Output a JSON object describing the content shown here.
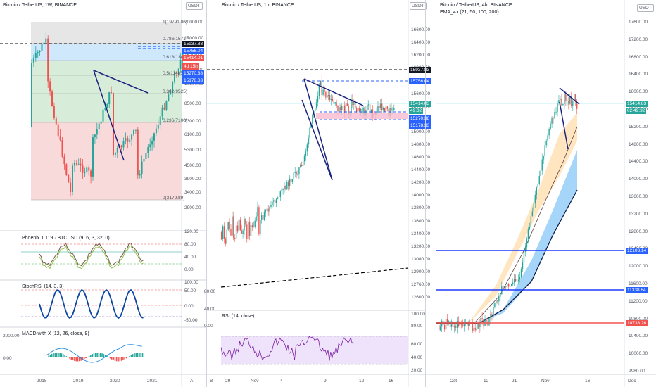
{
  "colors": {
    "bg": "#ffffff",
    "price_up": "#26a69a",
    "price_down": "#ef5350",
    "tag_blue": "#2962ff",
    "tag_black": "#131722",
    "tag_red": "#ef5350",
    "tag_teal": "#26a69a",
    "fib_red": "#f7cbcb",
    "fib_green": "#c8e6c9",
    "fib_blue": "#bbdefb",
    "fib_gray": "#e0e0e0",
    "rsi_fill": "#efe3fb",
    "ema_fill_blue": "#90caf9",
    "ema_fill_orange": "#ffe0b2"
  },
  "pane1": {
    "title": "Bitcoin / TetherUS, 1W, BINANCE",
    "currency": "USDT",
    "price_labels": [
      "20000.00",
      "17000.00",
      "14500.00",
      "12100.00",
      "10300.00",
      "8500.00",
      "7300.00",
      "6100.00",
      "5300.00",
      "4500.00",
      "3900.00",
      "3400.00",
      "2900.00"
    ],
    "fib_labels": [
      "1(19791.06)",
      "0.786(15717)",
      "0.618(13445)",
      "0.5(11485)",
      "0.382(9525)",
      "0.236(7100)",
      "0(3179.89)"
    ],
    "tags": [
      {
        "text": "15937.83",
        "color": "black"
      },
      {
        "text": "15756.04",
        "color": "blue"
      },
      {
        "text": "15414.01",
        "color": "red"
      },
      {
        "text": "4d 15h",
        "color": "red"
      },
      {
        "text": "15270.38",
        "color": "blue"
      },
      {
        "text": "15178.33",
        "color": "blue"
      }
    ],
    "x_labels": [
      "2018",
      "2019",
      "2020",
      "2021"
    ],
    "indicators": {
      "phoenix": {
        "title": "Phoenix 1.119 · BTCUSD (9, 6, 3, 32, 0)",
        "scale": [
          "120.00",
          "80.00",
          "40.00",
          "0.00"
        ]
      },
      "stochrsi": {
        "title": "StochRSI (14, 3, 3)",
        "scale": [
          "100.00",
          "50.00",
          "0.00",
          "-50.00"
        ]
      },
      "macd": {
        "title": "MACD with X (12, 26, close, 9)",
        "scale": [
          "2000.00",
          "0.00"
        ]
      }
    },
    "corner_label": "A"
  },
  "pane2": {
    "title": "Bitcoin / TetherUS, 1h, BINANCE",
    "currency": "USDT",
    "price_labels": [
      "16600.00",
      "16400.00",
      "16200.00",
      "16000.00",
      "15800.00",
      "15600.00",
      "15400.00",
      "15200.00",
      "15000.00",
      "14800.00",
      "14600.00",
      "14400.00",
      "14200.00",
      "14000.00",
      "13800.00",
      "13600.00",
      "13400.00",
      "13200.00",
      "13080.00",
      "12900.00",
      "12760.00",
      "12600.00"
    ],
    "tags": [
      {
        "text": "15937.83",
        "color": "black"
      },
      {
        "text": "15756.04",
        "color": "blue"
      },
      {
        "text": "15414.03",
        "color": "teal"
      },
      {
        "text": "49:32",
        "color": "teal"
      },
      {
        "text": "15270.38",
        "color": "blue"
      },
      {
        "text": "15178.33",
        "color": "blue"
      }
    ],
    "left_scale": [
      "80.00",
      "40.00",
      "0.00"
    ],
    "rsi": {
      "title": "RSI (14, close)",
      "scale": [
        "100.00",
        "80.00",
        "60.00",
        "40.00",
        "20.00"
      ]
    },
    "x_labels": [
      "29",
      "Nov",
      "4",
      "9",
      "12",
      "16"
    ],
    "corner_label": "B"
  },
  "pane3": {
    "title": "Bitcoin / TetherUS, 4h, BINANCE",
    "subtitle": "EMA_4x (21, 50, 100, 200)",
    "currency": "USDT",
    "price_labels": [
      "17600.00",
      "17200.00",
      "16800.00",
      "16400.00",
      "16000.00",
      "15600.00",
      "15200.00",
      "14800.00",
      "14400.00",
      "14000.00",
      "13600.00",
      "13200.00",
      "12800.00",
      "12400.00",
      "12000.00",
      "11600.00",
      "11200.00",
      "10800.00",
      "10400.00",
      "10000.00",
      "9980.00"
    ],
    "tags": [
      {
        "text": "15414.83",
        "color": "teal"
      },
      {
        "text": "02:49:32",
        "color": "teal"
      },
      {
        "text": "12103.14",
        "color": "blue"
      },
      {
        "text": "11338.64",
        "color": "blue"
      },
      {
        "text": "10738.26",
        "color": "red"
      }
    ],
    "x_labels": [
      "Oct",
      "12",
      "21",
      "Nov",
      "16",
      "Dec"
    ]
  }
}
